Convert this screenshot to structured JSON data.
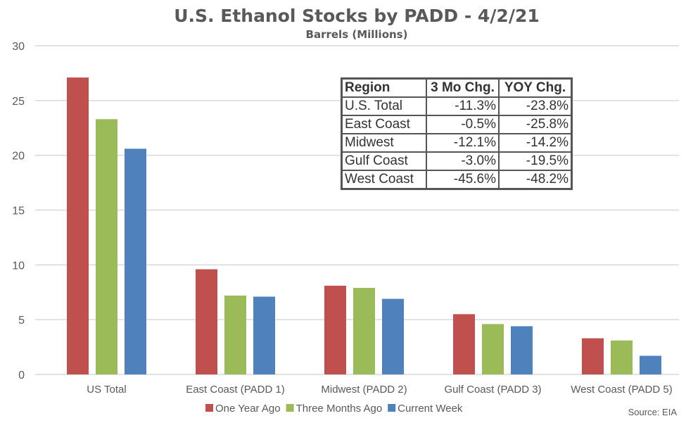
{
  "chart_data": {
    "type": "bar",
    "title": "U.S. Ethanol Stocks by PADD - 4/2/21",
    "subtitle": "Barrels (Millions)",
    "xlabel": "",
    "ylabel": "",
    "ylim": [
      0,
      30
    ],
    "yticks": [
      0,
      5,
      10,
      15,
      20,
      25,
      30
    ],
    "grid": true,
    "legend_position": "bottom",
    "categories": [
      "US Total",
      "East Coast (PADD 1)",
      "Midwest (PADD 2)",
      "Gulf Coast (PADD 3)",
      "West Coast (PADD 5)"
    ],
    "series": [
      {
        "name": "One Year Ago",
        "color": "#C0504D",
        "values": [
          27.1,
          9.6,
          8.1,
          5.5,
          3.3
        ]
      },
      {
        "name": "Three Months Ago",
        "color": "#9BBB59",
        "values": [
          23.3,
          7.2,
          7.9,
          4.6,
          3.1
        ]
      },
      {
        "name": "Current Week",
        "color": "#4F81BD",
        "values": [
          20.6,
          7.1,
          6.9,
          4.4,
          1.7
        ]
      }
    ],
    "source": "Source: EIA"
  },
  "table": {
    "headers": [
      "Region",
      "3 Mo Chg.",
      "YOY Chg."
    ],
    "rows": [
      [
        "U.S. Total",
        "-11.3%",
        "-23.8%"
      ],
      [
        "East Coast",
        "-0.5%",
        "-25.8%"
      ],
      [
        "Midwest",
        "-12.1%",
        "-14.2%"
      ],
      [
        "Gulf Coast",
        "-3.0%",
        "-19.5%"
      ],
      [
        "West Coast",
        "-45.6%",
        "-48.2%"
      ]
    ]
  }
}
